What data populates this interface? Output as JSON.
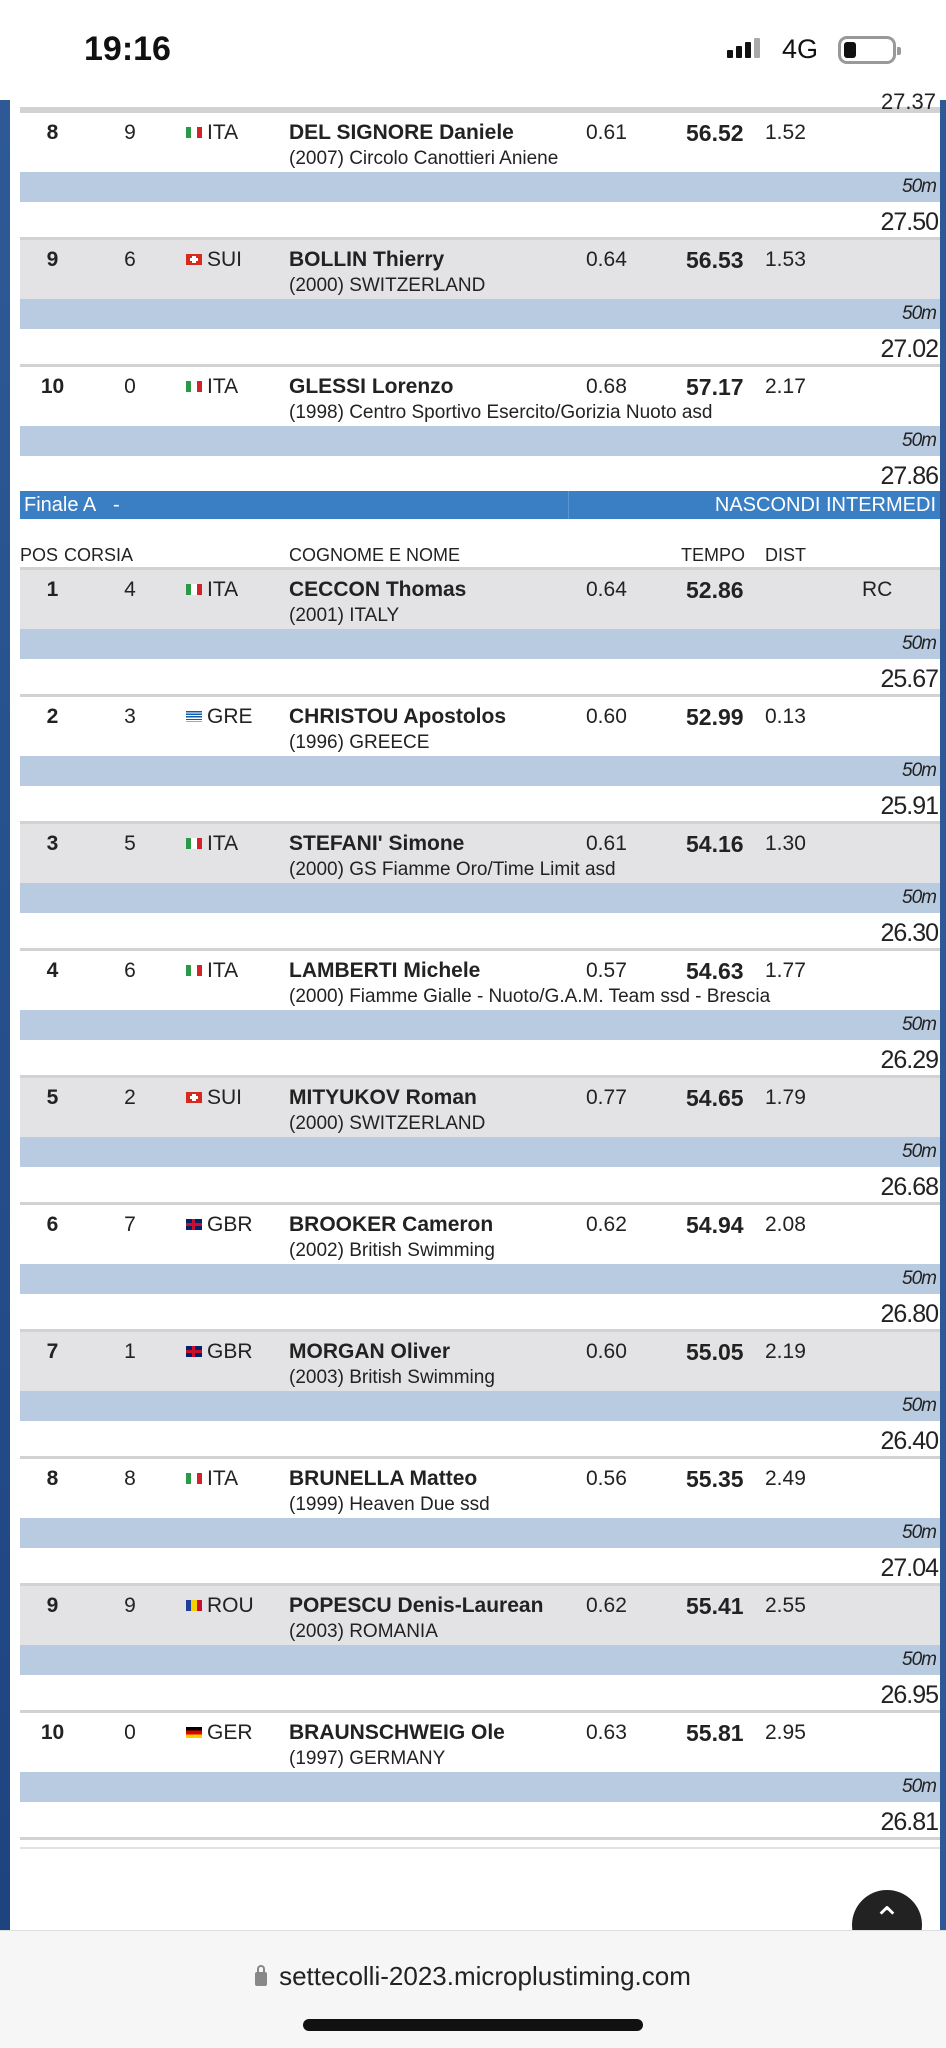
{
  "status_bar": {
    "time": "19:16",
    "network": "4G",
    "signal_bars": 4,
    "battery_level": 0.2
  },
  "partial_split": "27.37",
  "semifinal_rows": [
    {
      "pos": "8",
      "lane": "9",
      "flag": "ITA",
      "nat": "ITA",
      "name": "DEL SIGNORE Daniele",
      "club": "(2007) Circolo Canottieri Aniene",
      "reaction": "0.61",
      "time": "56.52",
      "dist": "1.52",
      "note": "",
      "split_label": "50m",
      "split": "27.50"
    },
    {
      "pos": "9",
      "lane": "6",
      "flag": "SUI",
      "nat": "SUI",
      "name": "BOLLIN Thierry",
      "club": "(2000) SWITZERLAND",
      "reaction": "0.64",
      "time": "56.53",
      "dist": "1.53",
      "note": "",
      "split_label": "50m",
      "split": "27.02"
    },
    {
      "pos": "10",
      "lane": "0",
      "flag": "ITA",
      "nat": "ITA",
      "name": "GLESSI Lorenzo",
      "club": "(1998) Centro Sportivo Esercito/Gorizia Nuoto asd",
      "reaction": "0.68",
      "time": "57.17",
      "dist": "2.17",
      "note": "",
      "split_label": "50m",
      "split": "27.86"
    }
  ],
  "final_header": {
    "title": "Finale A",
    "dash": "-",
    "toggle": "NASCONDI INTERMEDI"
  },
  "columns": {
    "pos": "POS",
    "lane": "CORSIA",
    "name": "COGNOME E NOME",
    "time": "TEMPO",
    "dist": "DIST"
  },
  "final_rows": [
    {
      "pos": "1",
      "lane": "4",
      "flag": "ITA",
      "nat": "ITA",
      "name": "CECCON Thomas",
      "club": "(2001) ITALY",
      "reaction": "0.64",
      "time": "52.86",
      "dist": "",
      "note": "RC",
      "split_label": "50m",
      "split": "25.67"
    },
    {
      "pos": "2",
      "lane": "3",
      "flag": "GRE",
      "nat": "GRE",
      "name": "CHRISTOU Apostolos",
      "club": "(1996) GREECE",
      "reaction": "0.60",
      "time": "52.99",
      "dist": "0.13",
      "note": "",
      "split_label": "50m",
      "split": "25.91"
    },
    {
      "pos": "3",
      "lane": "5",
      "flag": "ITA",
      "nat": "ITA",
      "name": "STEFANI' Simone",
      "club": "(2000) GS Fiamme Oro/Time Limit asd",
      "reaction": "0.61",
      "time": "54.16",
      "dist": "1.30",
      "note": "",
      "split_label": "50m",
      "split": "26.30"
    },
    {
      "pos": "4",
      "lane": "6",
      "flag": "ITA",
      "nat": "ITA",
      "name": "LAMBERTI Michele",
      "club": "(2000) Fiamme Gialle - Nuoto/G.A.M. Team ssd - Brescia",
      "reaction": "0.57",
      "time": "54.63",
      "dist": "1.77",
      "note": "",
      "split_label": "50m",
      "split": "26.29"
    },
    {
      "pos": "5",
      "lane": "2",
      "flag": "SUI",
      "nat": "SUI",
      "name": "MITYUKOV Roman",
      "club": "(2000) SWITZERLAND",
      "reaction": "0.77",
      "time": "54.65",
      "dist": "1.79",
      "note": "",
      "split_label": "50m",
      "split": "26.68"
    },
    {
      "pos": "6",
      "lane": "7",
      "flag": "GBR",
      "nat": "GBR",
      "name": "BROOKER Cameron",
      "club": "(2002) British Swimming",
      "reaction": "0.62",
      "time": "54.94",
      "dist": "2.08",
      "note": "",
      "split_label": "50m",
      "split": "26.80"
    },
    {
      "pos": "7",
      "lane": "1",
      "flag": "GBR",
      "nat": "GBR",
      "name": "MORGAN Oliver",
      "club": "(2003) British Swimming",
      "reaction": "0.60",
      "time": "55.05",
      "dist": "2.19",
      "note": "",
      "split_label": "50m",
      "split": "26.40"
    },
    {
      "pos": "8",
      "lane": "8",
      "flag": "ITA",
      "nat": "ITA",
      "name": "BRUNELLA Matteo",
      "club": "(1999) Heaven Due ssd",
      "reaction": "0.56",
      "time": "55.35",
      "dist": "2.49",
      "note": "",
      "split_label": "50m",
      "split": "27.04"
    },
    {
      "pos": "9",
      "lane": "9",
      "flag": "ROU",
      "nat": "ROU",
      "name": "POPESCU Denis-Laurean",
      "club": "(2003) ROMANIA",
      "reaction": "0.62",
      "time": "55.41",
      "dist": "2.55",
      "note": "",
      "split_label": "50m",
      "split": "26.95"
    },
    {
      "pos": "10",
      "lane": "0",
      "flag": "GER",
      "nat": "GER",
      "name": "BRAUNSCHWEIG Ole",
      "club": "(1997) GERMANY",
      "reaction": "0.63",
      "time": "55.81",
      "dist": "2.95",
      "note": "",
      "split_label": "50m",
      "split": "26.81"
    }
  ],
  "browser": {
    "url": "settecolli-2023.microplustiming.com"
  },
  "colors": {
    "header_blue": "#3a7fc4",
    "split_bar": "#b9cbe0",
    "row_gray": "#e3e3e5"
  }
}
